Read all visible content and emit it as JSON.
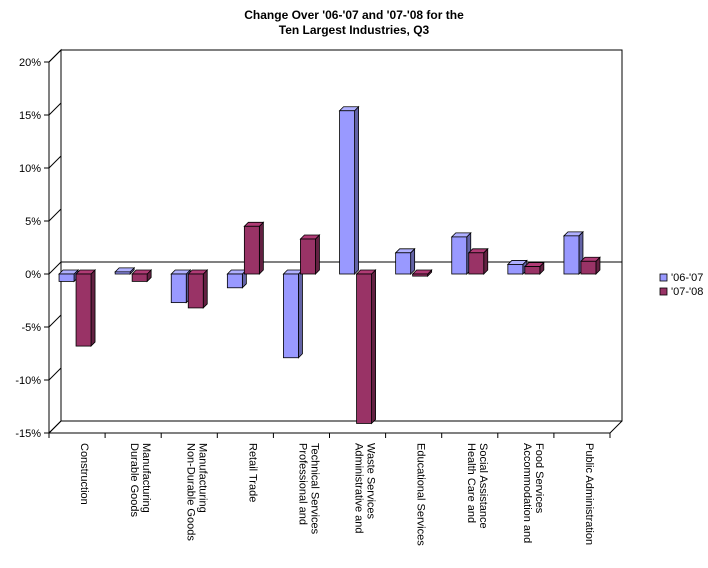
{
  "chart_data": {
    "type": "bar",
    "title": "Change Over '06-'07 and '07-'08 for the Ten Largest Industries, Q3",
    "title_lines": [
      "Change Over '06-'07 and '07-'08 for the",
      "Ten Largest Industries, Q3"
    ],
    "categories": [
      "Construction",
      "Durable Goods Manufacturing",
      "Non-Durable Goods Manufacturing",
      "Retail Trade",
      "Professional and Technical Services",
      "Administrative and Waste Services",
      "Educational Services",
      "Health Care and Social Assistance",
      "Accommodation and Food Services",
      "Public Administration"
    ],
    "category_lines": [
      [
        "Construction"
      ],
      [
        "Durable Goods",
        "Manufacturing"
      ],
      [
        "Non-Durable Goods",
        "Manufacturing"
      ],
      [
        "Retail Trade"
      ],
      [
        "Professional and",
        "Technical Services"
      ],
      [
        "Administrative and",
        "Waste Services"
      ],
      [
        "Educational Services"
      ],
      [
        "Health Care and",
        "Social Assistance"
      ],
      [
        "Accommodation and",
        "Food Services"
      ],
      [
        "Public Administration"
      ]
    ],
    "series": [
      {
        "name": "'06-'07",
        "color": "#9999ff",
        "values": [
          -0.7,
          0.2,
          -2.7,
          -1.3,
          -7.9,
          15.4,
          2.0,
          3.5,
          0.9,
          3.6
        ]
      },
      {
        "name": "'07-'08",
        "color": "#993366",
        "values": [
          -6.8,
          -0.7,
          -3.2,
          4.5,
          3.3,
          -14.1,
          -0.2,
          2.0,
          0.7,
          1.2
        ]
      }
    ],
    "ylim": [
      -15,
      20
    ],
    "yticks": [
      -15,
      -10,
      -5,
      0,
      5,
      10,
      15,
      20
    ],
    "ytick_labels": [
      "-15%",
      "-10%",
      "-5%",
      "0%",
      "5%",
      "10%",
      "15%",
      "20%"
    ],
    "xlabel": "",
    "ylabel": "",
    "legend": "right",
    "grid": false,
    "three_d": true
  }
}
